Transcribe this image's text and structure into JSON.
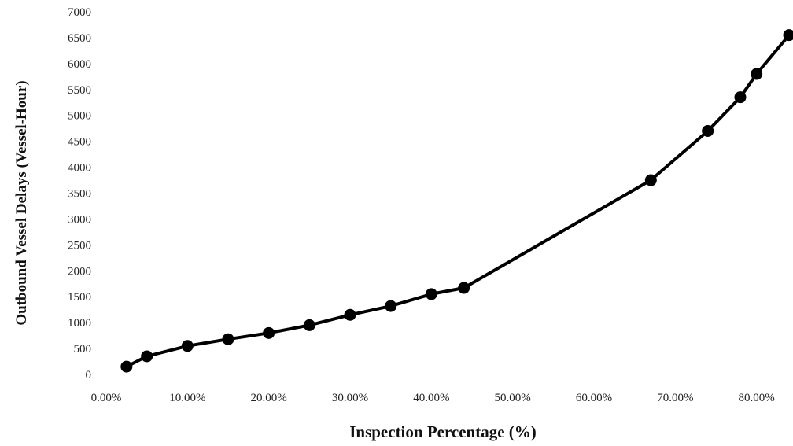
{
  "chart_data": {
    "type": "line",
    "title": "",
    "xlabel": "Inspection Percentage (%)",
    "ylabel": "Outbound Vessel Delays (Vessel-Hour)",
    "xlim": [
      0,
      84
    ],
    "ylim": [
      0,
      7000
    ],
    "x_ticks": [
      0,
      10,
      20,
      30,
      40,
      50,
      60,
      70,
      80
    ],
    "x_tick_labels": [
      "0.00%",
      "10.00%",
      "20.00%",
      "30.00%",
      "40.00%",
      "50.00%",
      "60.00%",
      "70.00%",
      "80.00%"
    ],
    "y_ticks": [
      0,
      500,
      1000,
      1500,
      2000,
      2500,
      3000,
      3500,
      4000,
      4500,
      5000,
      5500,
      6000,
      6500,
      7000
    ],
    "y_tick_labels": [
      "0",
      "500",
      "1000",
      "1500",
      "2000",
      "2500",
      "3000",
      "3500",
      "4000",
      "4500",
      "5000",
      "5500",
      "6000",
      "6500",
      "7000"
    ],
    "grid": false,
    "legend": "none",
    "series": [
      {
        "x": [
          2.5,
          5,
          10,
          15,
          20,
          25,
          30,
          35,
          40,
          44,
          67,
          74,
          78,
          80,
          84
        ],
        "y": [
          150,
          350,
          550,
          680,
          800,
          950,
          1150,
          1320,
          1550,
          1670,
          3750,
          4700,
          5350,
          5800,
          6550
        ],
        "color": "#000000"
      }
    ]
  }
}
